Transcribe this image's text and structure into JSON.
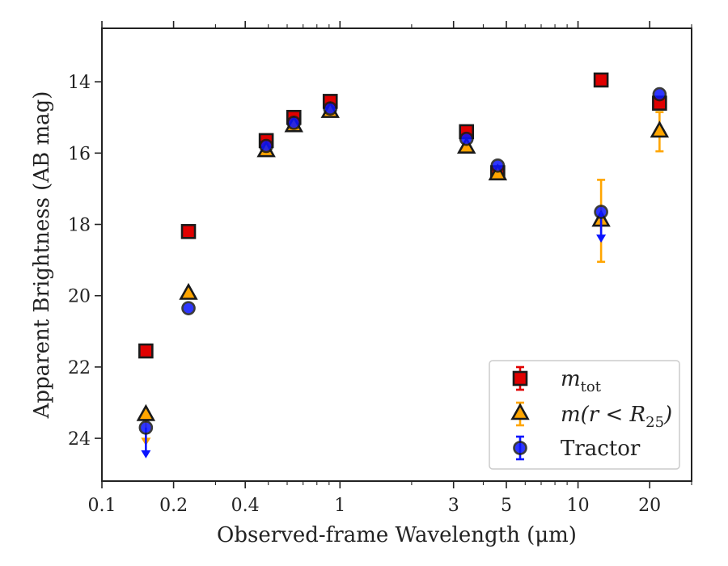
{
  "chart_data": {
    "type": "scatter",
    "xscale": "log",
    "xlim": [
      0.1,
      30
    ],
    "ylim": [
      25.2,
      12.5
    ],
    "y_inverted": true,
    "xlabel": "Observed-frame Wavelength (μm)",
    "ylabel": "Apparent Brightness (AB mag)",
    "xticks": [
      {
        "value": 0.1,
        "label": "0.1"
      },
      {
        "value": 0.2,
        "label": "0.2"
      },
      {
        "value": 0.4,
        "label": "0.4"
      },
      {
        "value": 1,
        "label": "1"
      },
      {
        "value": 3,
        "label": "3"
      },
      {
        "value": 5,
        "label": "5"
      },
      {
        "value": 10,
        "label": "10"
      },
      {
        "value": 20,
        "label": "20"
      }
    ],
    "yticks": [
      {
        "value": 14,
        "label": "14"
      },
      {
        "value": 16,
        "label": "16"
      },
      {
        "value": 18,
        "label": "18"
      },
      {
        "value": 20,
        "label": "20"
      },
      {
        "value": 22,
        "label": "22"
      },
      {
        "value": 24,
        "label": "24"
      }
    ],
    "legend_position": "lower-right",
    "series": [
      {
        "name": "m_tot",
        "legend_main": "m",
        "legend_sub": "tot",
        "marker": "square",
        "color": "#e00000",
        "errorbar_color": "#e00000",
        "points": [
          {
            "x": 0.153,
            "y": 21.55
          },
          {
            "x": 0.231,
            "y": 18.2
          },
          {
            "x": 0.49,
            "y": 15.65
          },
          {
            "x": 0.64,
            "y": 15.0
          },
          {
            "x": 0.91,
            "y": 14.55
          },
          {
            "x": 3.4,
            "y": 15.4
          },
          {
            "x": 4.6,
            "y": 16.55
          },
          {
            "x": 12.5,
            "y": 13.95
          },
          {
            "x": 22.0,
            "y": 14.6
          }
        ]
      },
      {
        "name": "m(r<R25)",
        "legend_main": "m(r < R",
        "legend_sub": "25",
        "legend_tail": ")",
        "marker": "triangle",
        "color": "#ffa500",
        "errorbar_color": "#ffa500",
        "points": [
          {
            "x": 0.153,
            "y": 23.35,
            "upper_limit": true
          },
          {
            "x": 0.231,
            "y": 19.95
          },
          {
            "x": 0.49,
            "y": 15.95
          },
          {
            "x": 0.64,
            "y": 15.25
          },
          {
            "x": 0.91,
            "y": 14.85
          },
          {
            "x": 3.4,
            "y": 15.85
          },
          {
            "x": 4.6,
            "y": 16.6
          },
          {
            "x": 12.5,
            "y": 17.9,
            "yerr": 1.15
          },
          {
            "x": 22.0,
            "y": 15.4,
            "yerr": 0.55
          }
        ]
      },
      {
        "name": "Tractor",
        "legend_label": "Tractor",
        "marker": "circle",
        "color": "#0a14ff",
        "errorbar_color": "#0a14ff",
        "points": [
          {
            "x": 0.153,
            "y": 23.7,
            "upper_limit": true
          },
          {
            "x": 0.231,
            "y": 20.35
          },
          {
            "x": 0.49,
            "y": 15.8
          },
          {
            "x": 0.64,
            "y": 15.15
          },
          {
            "x": 0.91,
            "y": 14.75
          },
          {
            "x": 3.4,
            "y": 15.6
          },
          {
            "x": 4.6,
            "y": 16.35
          },
          {
            "x": 12.5,
            "y": 17.65,
            "upper_limit": true
          },
          {
            "x": 22.0,
            "y": 14.35
          }
        ]
      }
    ]
  }
}
